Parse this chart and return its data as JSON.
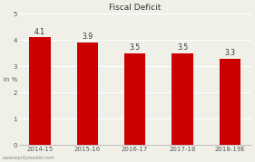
{
  "title": "Fiscal Deficit",
  "categories": [
    "2014-15",
    "2015-16",
    "2016-17",
    "2017-18",
    "2018-19E"
  ],
  "values": [
    4.1,
    3.9,
    3.5,
    3.5,
    3.3
  ],
  "bar_color": "#cc0000",
  "ylabel": "in %",
  "ylim": [
    0,
    5
  ],
  "yticks": [
    0,
    1,
    2,
    3,
    4,
    5
  ],
  "background_color": "#f0efe8",
  "title_fontsize": 6.5,
  "label_fontsize": 5.5,
  "tick_fontsize": 5,
  "watermark": "www.equitymaster.com",
  "bar_width": 0.45,
  "grid_color": "#ffffff",
  "spine_color": "#aaaaaa"
}
